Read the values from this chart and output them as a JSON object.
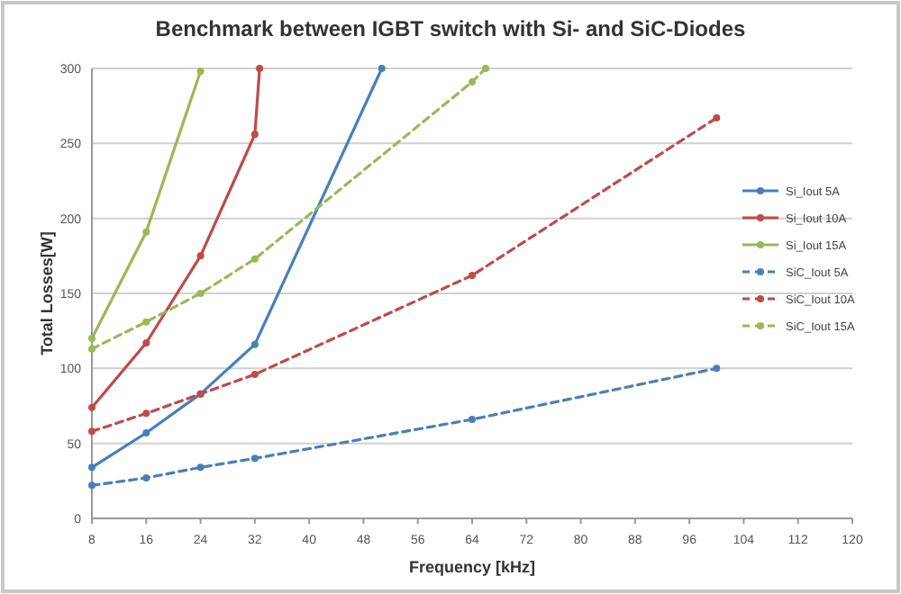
{
  "chart_data": {
    "type": "line",
    "title": "Benchmark between IGBT switch with Si- and SiC-Diodes",
    "xlabel": "Frequency [kHz]",
    "ylabel": "Total Losses[W]",
    "xlim": [
      8,
      120
    ],
    "xticks": [
      8,
      16,
      24,
      32,
      40,
      48,
      56,
      64,
      72,
      80,
      88,
      96,
      104,
      112,
      120
    ],
    "ylim": [
      0,
      300
    ],
    "yticks": [
      0,
      50,
      100,
      150,
      200,
      250,
      300
    ],
    "grid": "y",
    "legend": "right",
    "marker": "circle",
    "series": [
      {
        "name": "Si_Iout 5A",
        "color": "#4a7ebb",
        "line_style": "solid",
        "x": [
          8,
          16,
          24,
          32,
          50.7
        ],
        "values": [
          34,
          57,
          83,
          116,
          300
        ]
      },
      {
        "name": "Si_Iout 10A",
        "color": "#be4b48",
        "line_style": "solid",
        "x": [
          8,
          16,
          24,
          32,
          32.7
        ],
        "values": [
          74,
          117,
          175,
          256,
          300
        ]
      },
      {
        "name": "Si_Iout 15A",
        "color": "#98b954",
        "line_style": "solid",
        "x": [
          8,
          16,
          24
        ],
        "values": [
          120,
          191,
          298
        ]
      },
      {
        "name": "SiC_Iout 5A",
        "color": "#4a7ebb",
        "line_style": "dashed",
        "x": [
          8,
          16,
          24,
          32,
          64,
          100
        ],
        "values": [
          22,
          27,
          34,
          40,
          66,
          100
        ]
      },
      {
        "name": "SiC_Iout 10A",
        "color": "#be4b48",
        "line_style": "dashed",
        "x": [
          8,
          16,
          24,
          32,
          64,
          100
        ],
        "values": [
          58,
          70,
          83,
          96,
          162,
          267
        ]
      },
      {
        "name": "SiC_Iout 15A",
        "color": "#98b954",
        "line_style": "dashed",
        "x": [
          8,
          16,
          24,
          32,
          64,
          66
        ],
        "values": [
          113,
          131,
          150,
          173,
          291,
          300
        ]
      }
    ]
  }
}
